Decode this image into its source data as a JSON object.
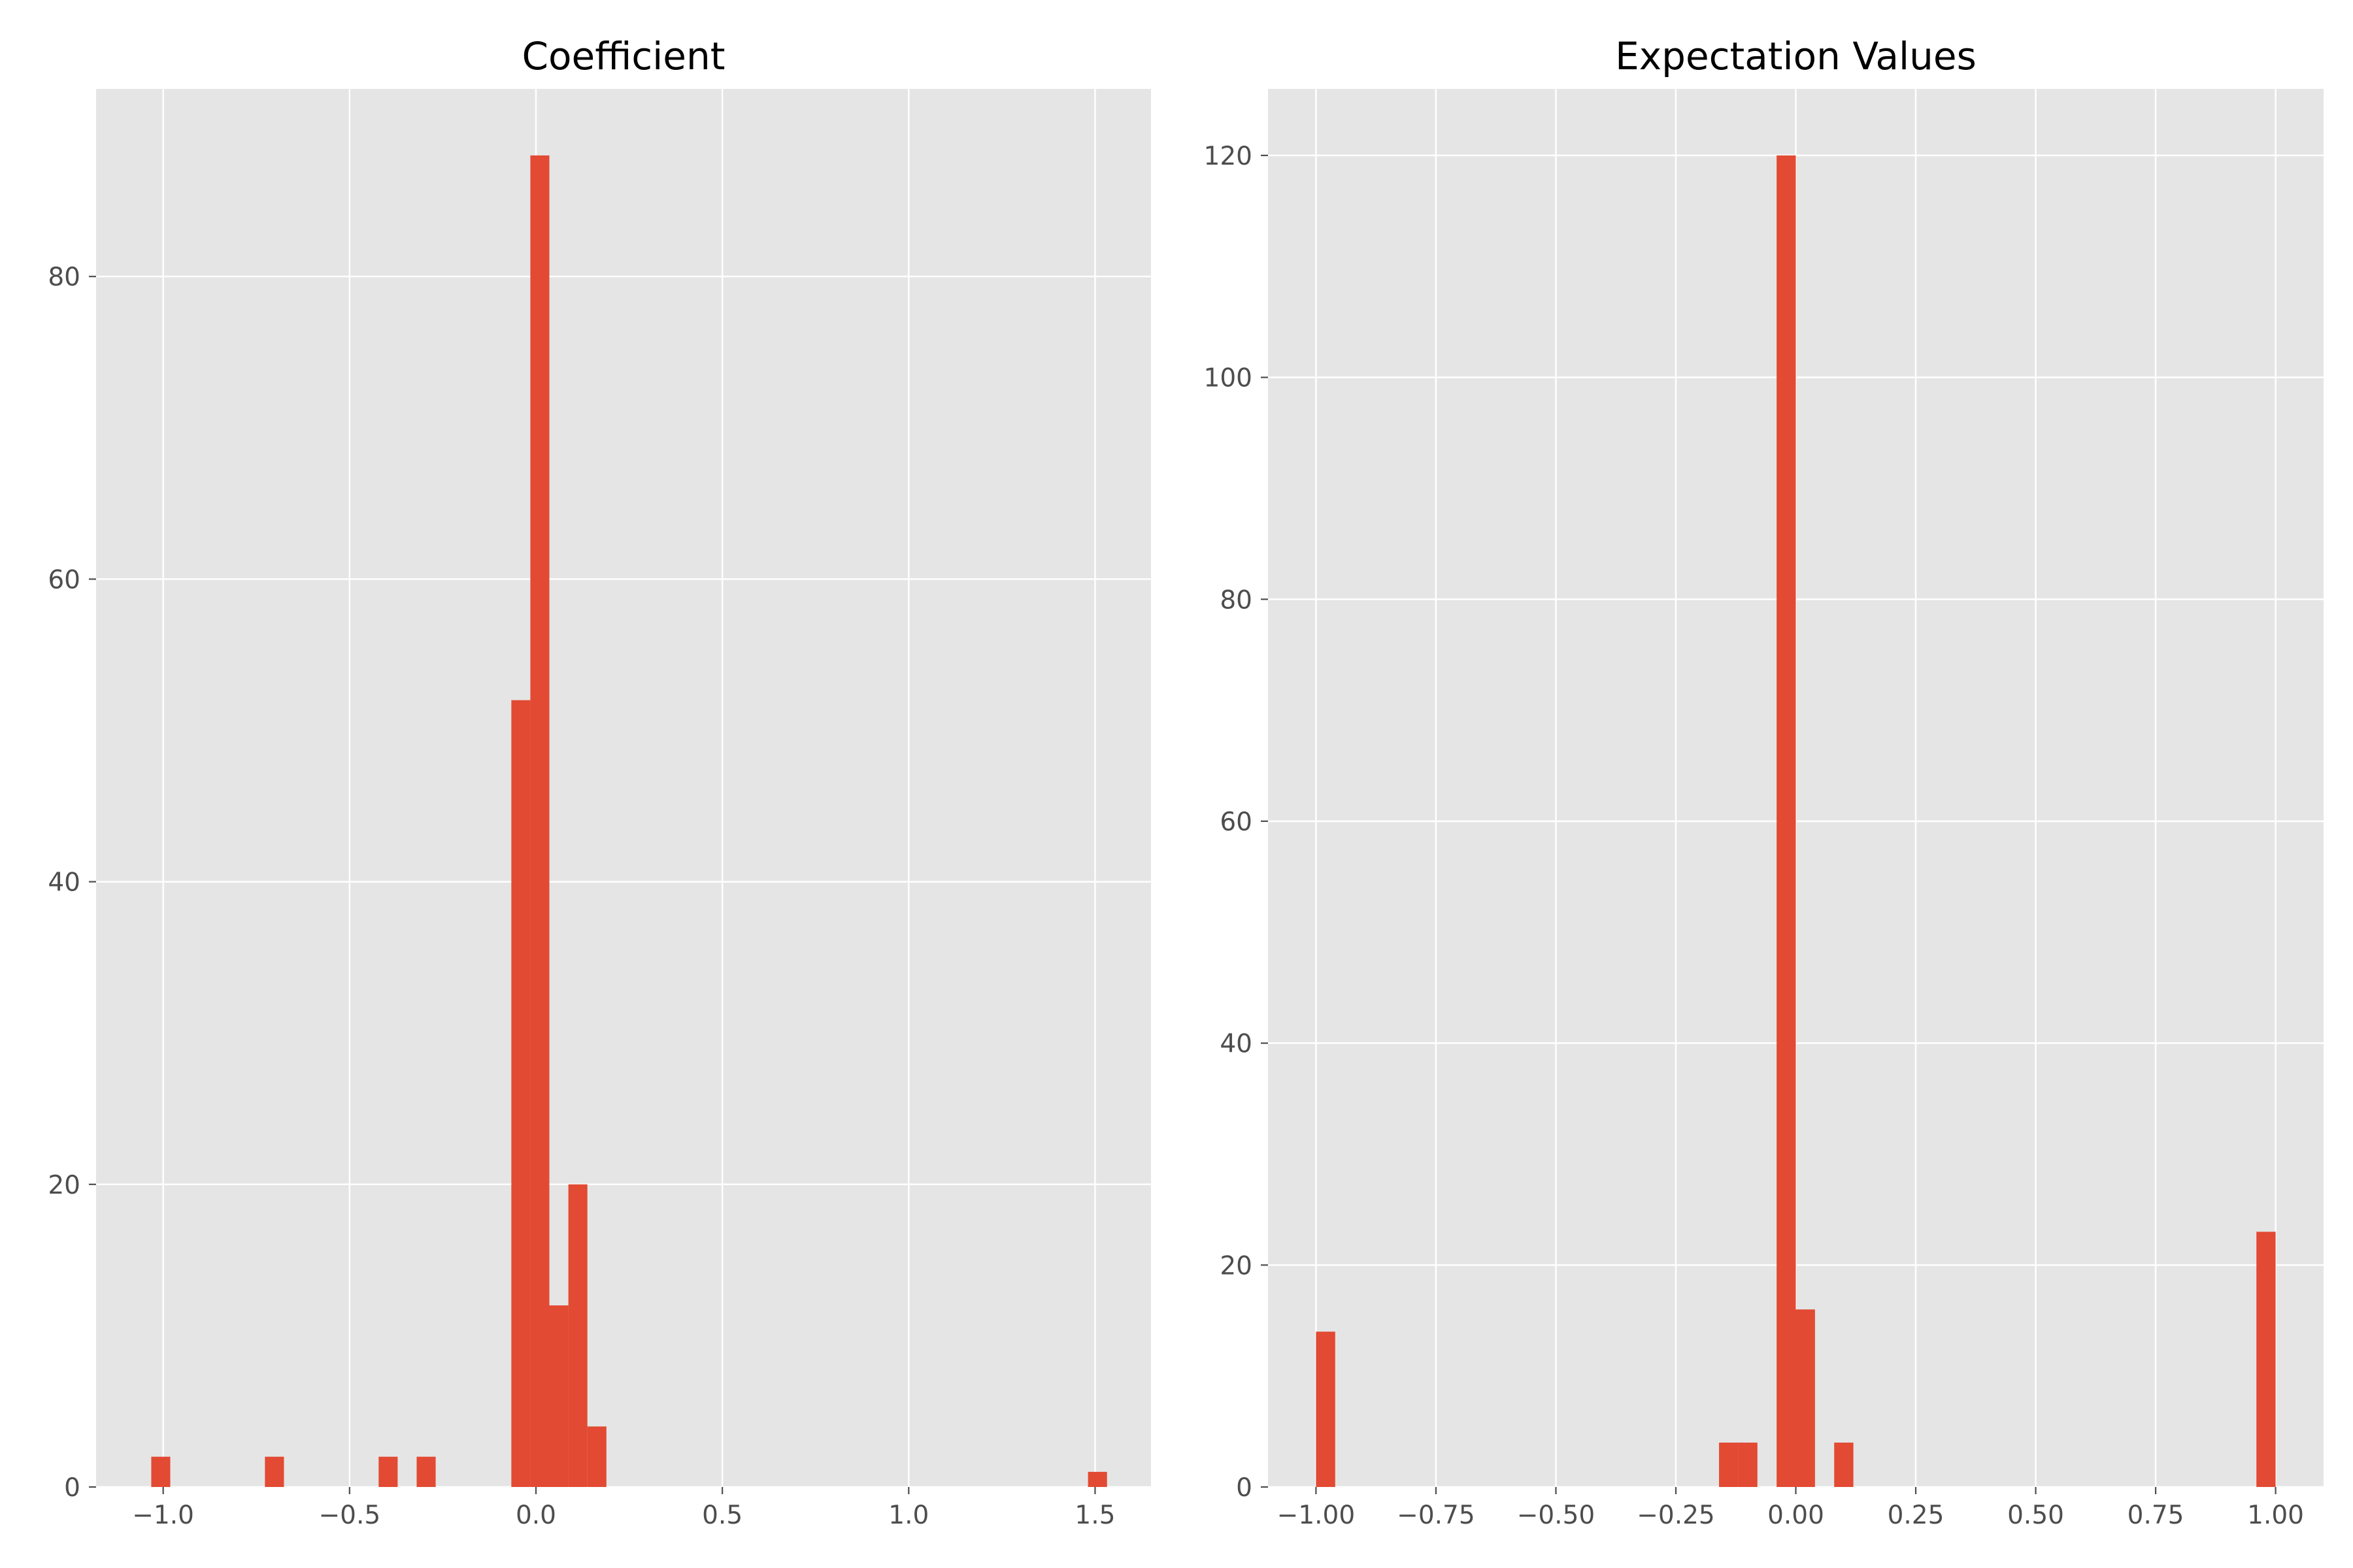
{
  "style": {
    "axes_bg": "#e5e5e5",
    "grid": "#ffffff",
    "bar_color": "#e24a33",
    "tick_color": "#4d4d4d"
  },
  "chart_data": [
    {
      "type": "bar",
      "title": "Coefficient",
      "xlabel": "",
      "ylabel": "",
      "xlim": [
        -1.18,
        1.65
      ],
      "ylim": [
        0,
        92.4
      ],
      "grid": true,
      "xticks": [
        -1.0,
        -0.5,
        0.0,
        0.5,
        1.0,
        1.5
      ],
      "xtick_labels": [
        "−1.0",
        "−0.5",
        "0.0",
        "0.5",
        "1.0",
        "1.5"
      ],
      "yticks": [
        0,
        20,
        40,
        60,
        80
      ],
      "ytick_labels": [
        "0",
        "20",
        "40",
        "60",
        "80"
      ],
      "bins": [
        {
          "x0": -1.032,
          "x1": -0.981,
          "count": 2
        },
        {
          "x0": -0.727,
          "x1": -0.676,
          "count": 2
        },
        {
          "x0": -0.422,
          "x1": -0.371,
          "count": 2
        },
        {
          "x0": -0.32,
          "x1": -0.269,
          "count": 2
        },
        {
          "x0": -0.066,
          "x1": -0.015,
          "count": 52
        },
        {
          "x0": -0.015,
          "x1": 0.036,
          "count": 88
        },
        {
          "x0": 0.036,
          "x1": 0.087,
          "count": 12
        },
        {
          "x0": 0.087,
          "x1": 0.138,
          "count": 20
        },
        {
          "x0": 0.138,
          "x1": 0.189,
          "count": 4
        },
        {
          "x0": 1.481,
          "x1": 1.532,
          "count": 1
        }
      ]
    },
    {
      "type": "bar",
      "title": "Expectation Values",
      "xlabel": "",
      "ylabel": "",
      "xlim": [
        -1.1,
        1.1
      ],
      "ylim": [
        0,
        126
      ],
      "grid": true,
      "xticks": [
        -1.0,
        -0.75,
        -0.5,
        -0.25,
        0.0,
        0.25,
        0.5,
        0.75,
        1.0
      ],
      "xtick_labels": [
        "−1.00",
        "−0.75",
        "−0.50",
        "−0.25",
        "0.00",
        "0.25",
        "0.50",
        "0.75",
        "1.00"
      ],
      "yticks": [
        0,
        20,
        40,
        60,
        80,
        100,
        120
      ],
      "ytick_labels": [
        "0",
        "20",
        "40",
        "60",
        "80",
        "100",
        "120"
      ],
      "bins": [
        {
          "x0": -1.0,
          "x1": -0.96,
          "count": 14
        },
        {
          "x0": -0.16,
          "x1": -0.12,
          "count": 4
        },
        {
          "x0": -0.12,
          "x1": -0.08,
          "count": 4
        },
        {
          "x0": -0.04,
          "x1": 0.0,
          "count": 120
        },
        {
          "x0": 0.0,
          "x1": 0.04,
          "count": 16
        },
        {
          "x0": 0.08,
          "x1": 0.12,
          "count": 4
        },
        {
          "x0": 0.96,
          "x1": 1.0,
          "count": 23
        }
      ]
    }
  ]
}
